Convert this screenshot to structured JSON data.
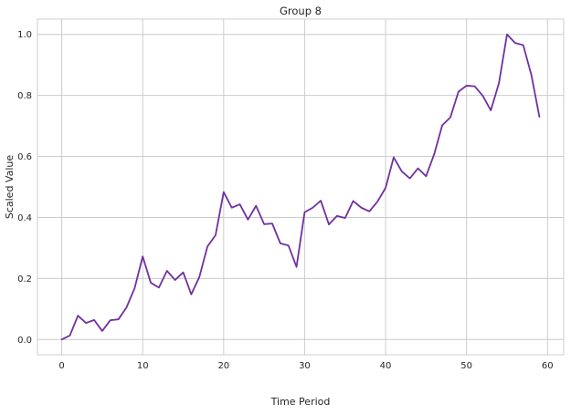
{
  "chart_data": {
    "type": "line",
    "title": "Group 8",
    "xlabel": "Time Period",
    "ylabel": "Scaled Value",
    "xlim": [
      -3,
      62
    ],
    "ylim": [
      -0.05,
      1.05
    ],
    "xticks": [
      0,
      10,
      20,
      30,
      40,
      50,
      60
    ],
    "yticks": [
      0.0,
      0.2,
      0.4,
      0.6,
      0.8,
      1.0
    ],
    "xtick_labels": [
      "0",
      "10",
      "20",
      "30",
      "40",
      "50",
      "60"
    ],
    "ytick_labels": [
      "0.0",
      "0.2",
      "0.4",
      "0.6",
      "0.8",
      "1.0"
    ],
    "grid": true,
    "series": [
      {
        "color": "#7030a0",
        "x": [
          0,
          1,
          2,
          3,
          4,
          5,
          6,
          7,
          8,
          9,
          10,
          11,
          12,
          13,
          14,
          15,
          16,
          17,
          18,
          19,
          20,
          21,
          22,
          23,
          24,
          25,
          26,
          27,
          28,
          29,
          30,
          31,
          32,
          33,
          34,
          35,
          36,
          37,
          38,
          39,
          40,
          41,
          42,
          43,
          44,
          45,
          46,
          47,
          48,
          49,
          50,
          51,
          52,
          53,
          54,
          55,
          56,
          57,
          58,
          59
        ],
        "y": [
          0.0,
          0.013,
          0.078,
          0.054,
          0.064,
          0.028,
          0.063,
          0.066,
          0.105,
          0.168,
          0.272,
          0.186,
          0.17,
          0.225,
          0.195,
          0.22,
          0.148,
          0.205,
          0.305,
          0.342,
          0.483,
          0.432,
          0.443,
          0.393,
          0.438,
          0.378,
          0.38,
          0.315,
          0.308,
          0.238,
          0.417,
          0.432,
          0.455,
          0.377,
          0.405,
          0.398,
          0.454,
          0.432,
          0.42,
          0.452,
          0.497,
          0.597,
          0.551,
          0.528,
          0.561,
          0.535,
          0.607,
          0.702,
          0.728,
          0.812,
          0.832,
          0.83,
          0.799,
          0.751,
          0.84,
          1.0,
          0.972,
          0.965,
          0.868,
          0.73
        ]
      }
    ]
  }
}
